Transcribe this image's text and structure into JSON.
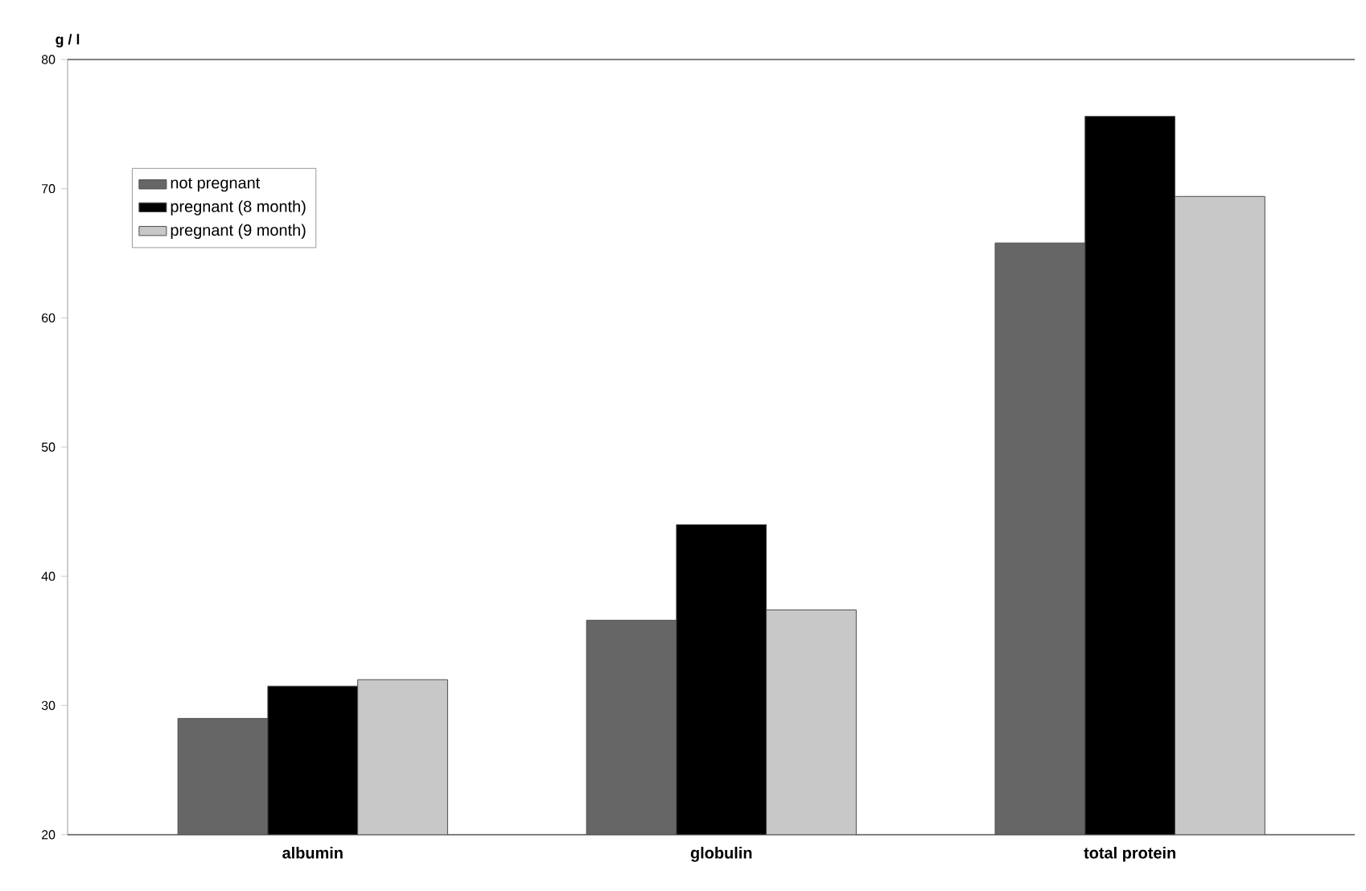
{
  "chart_data": {
    "type": "bar",
    "ylabel": "g / l",
    "categories": [
      "albumin",
      "globulin",
      "total protein"
    ],
    "series": [
      {
        "name": "not pregnant",
        "color": "#666666",
        "values": [
          29.0,
          36.6,
          65.8
        ]
      },
      {
        "name": "pregnant (8 month)",
        "color": "#000000",
        "values": [
          31.5,
          44.0,
          75.6
        ]
      },
      {
        "name": "pregnant (9 month)",
        "color": "#c8c8c8",
        "values": [
          32.0,
          37.4,
          69.4
        ]
      }
    ],
    "ylim": [
      20,
      80
    ],
    "yticks": [
      20,
      30,
      40,
      50,
      60,
      70,
      80
    ],
    "legend": "top left",
    "grid": false
  }
}
